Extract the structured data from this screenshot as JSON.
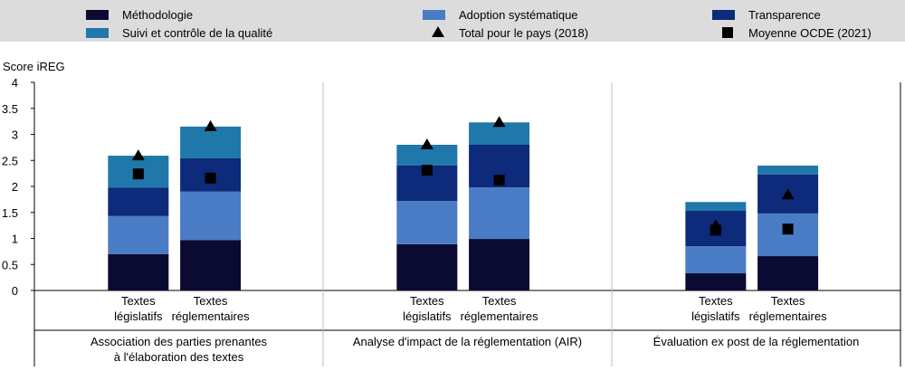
{
  "chart_data": {
    "type": "bar",
    "stacked": true,
    "y_label": "Score iREG",
    "ylim": [
      0,
      4
    ],
    "yticks": [
      0,
      0.5,
      1,
      1.5,
      2,
      2.5,
      3,
      3.5,
      4
    ],
    "groups": [
      [
        "Association des parties prenantes",
        "à l'élaboration des textes"
      ],
      [
        "Analyse d'impact de la réglementation (AIR)"
      ],
      [
        "Évaluation ex post de la réglementation"
      ]
    ],
    "categories": [
      [
        "Textes",
        "législatifs"
      ],
      [
        "Textes",
        "réglementaires"
      ],
      [
        "Textes",
        "législatifs"
      ],
      [
        "Textes",
        "réglementaires"
      ],
      [
        "Textes",
        "législatifs"
      ],
      [
        "Textes",
        "réglementaires"
      ]
    ],
    "series": [
      {
        "name": "Méthodologie",
        "color": "#0a0a32",
        "values": [
          0.7,
          0.97,
          0.89,
          0.99,
          0.33,
          0.66
        ]
      },
      {
        "name": "Adoption systématique",
        "color": "#4a7cc6",
        "values": [
          0.73,
          0.93,
          0.83,
          0.99,
          0.52,
          0.82
        ]
      },
      {
        "name": "Transparence",
        "color": "#0d2a7b",
        "values": [
          0.55,
          0.64,
          0.68,
          0.82,
          0.68,
          0.75
        ]
      },
      {
        "name": "Suivi et contrôle de la qualité",
        "color": "#1f78a9",
        "values": [
          0.61,
          0.61,
          0.4,
          0.43,
          0.17,
          0.17
        ]
      },
      {
        "name": "Total pour le pays (2018)",
        "type": "scatter",
        "marker": "triangle",
        "color": "#000000",
        "values": [
          2.59,
          3.15,
          2.8,
          3.23,
          1.25,
          1.84
        ]
      },
      {
        "name": "Moyenne OCDE (2021)",
        "type": "scatter",
        "marker": "square",
        "color": "#000000",
        "values": [
          2.24,
          2.16,
          2.31,
          2.12,
          1.16,
          1.18
        ]
      }
    ]
  }
}
